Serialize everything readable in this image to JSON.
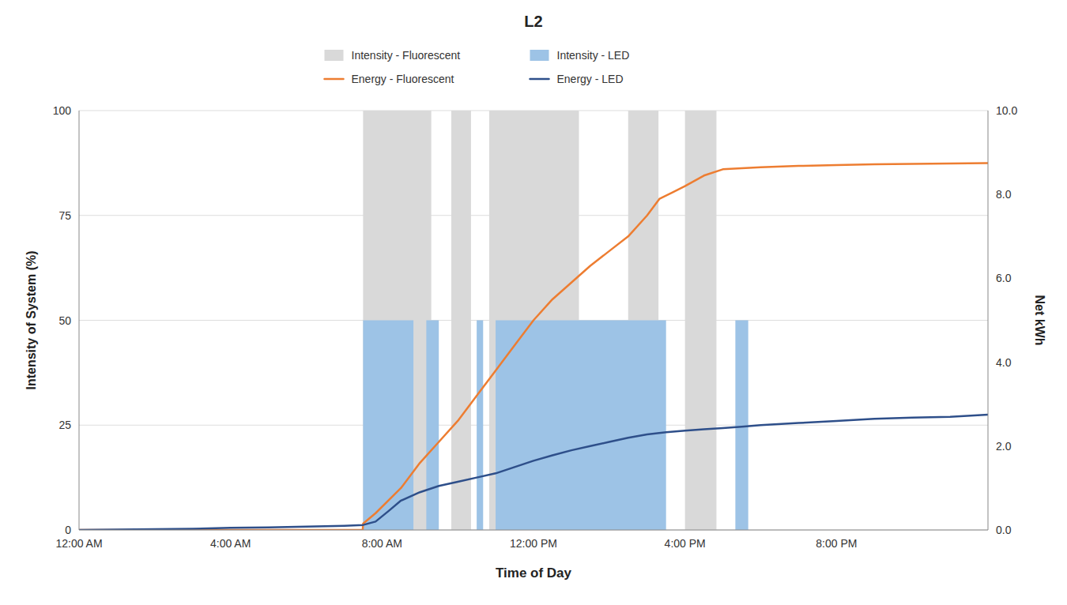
{
  "chart_data": {
    "type": "bar",
    "title": "L2",
    "xlabel": "Time of Day",
    "ylabel": "Intensity of System (%)",
    "y2label": "Net kWh",
    "xlim": [
      0,
      24
    ],
    "xticks": [
      {
        "value": 0,
        "label": "12:00 AM"
      },
      {
        "value": 4,
        "label": "4:00 AM"
      },
      {
        "value": 8,
        "label": "8:00 AM"
      },
      {
        "value": 12,
        "label": "12:00 PM"
      },
      {
        "value": 16,
        "label": "4:00 PM"
      },
      {
        "value": 20,
        "label": "8:00 PM"
      }
    ],
    "ylim": [
      0,
      100
    ],
    "yticks": [
      0,
      25,
      50,
      75,
      100
    ],
    "y2lim": [
      0,
      10
    ],
    "y2ticks": [
      {
        "value": 0.0,
        "label": "0.0"
      },
      {
        "value": 2.0,
        "label": "2.0"
      },
      {
        "value": 4.0,
        "label": "4.0"
      },
      {
        "value": 6.0,
        "label": "6.0"
      },
      {
        "value": 8.0,
        "label": "8.0"
      },
      {
        "value": 10.0,
        "label": "10.0"
      }
    ],
    "grid": "y",
    "legend": "top",
    "series": [
      {
        "name": "Intensity - Fluorescent",
        "type": "bar",
        "color": "#d9d9d9",
        "start": [
          7.5,
          9.83,
          10.83,
          14.5,
          16.0
        ],
        "end": [
          9.3,
          10.35,
          13.2,
          15.3,
          16.83
        ],
        "values": [
          100,
          100,
          100,
          100,
          100
        ]
      },
      {
        "name": "Intensity - LED",
        "type": "bar",
        "color": "#9dc3e6",
        "start": [
          7.5,
          9.17,
          10.5,
          11.0,
          17.33
        ],
        "end": [
          8.83,
          9.5,
          10.67,
          15.5,
          17.67
        ],
        "values": [
          50,
          50,
          50,
          50,
          50
        ]
      },
      {
        "name": "Energy - Fluorescent",
        "type": "line",
        "axis": "y2",
        "color": "#ed7d31",
        "x": [
          0,
          7.49,
          7.5,
          7.83,
          8.5,
          9.0,
          9.5,
          10.0,
          10.5,
          11.0,
          11.5,
          12.0,
          12.5,
          13.0,
          13.5,
          14.0,
          14.5,
          15.0,
          15.33,
          15.67,
          16.0,
          16.5,
          17.0,
          18.0,
          19.0,
          20.0,
          21.0,
          22.0,
          23.0,
          24.0
        ],
        "values": [
          0,
          0,
          0.15,
          0.4,
          1.0,
          1.6,
          2.1,
          2.6,
          3.2,
          3.8,
          4.4,
          5.0,
          5.5,
          5.9,
          6.3,
          6.65,
          7.0,
          7.5,
          7.9,
          8.05,
          8.2,
          8.45,
          8.6,
          8.65,
          8.68,
          8.7,
          8.72,
          8.73,
          8.74,
          8.75
        ]
      },
      {
        "name": "Energy - LED",
        "type": "line",
        "axis": "y2",
        "color": "#2e4f8a",
        "x": [
          0,
          1.0,
          2.0,
          3.0,
          4.0,
          5.0,
          6.0,
          6.5,
          7.0,
          7.5,
          7.83,
          8.17,
          8.5,
          9.0,
          9.5,
          10.0,
          10.5,
          11.0,
          11.5,
          12.0,
          12.5,
          13.0,
          13.5,
          14.0,
          14.5,
          15.0,
          15.5,
          16.0,
          16.5,
          17.0,
          17.5,
          18.0,
          19.0,
          20.0,
          21.0,
          22.0,
          23.0,
          24.0
        ],
        "values": [
          0,
          0.01,
          0.02,
          0.03,
          0.05,
          0.06,
          0.08,
          0.09,
          0.1,
          0.12,
          0.2,
          0.45,
          0.7,
          0.9,
          1.05,
          1.15,
          1.25,
          1.35,
          1.5,
          1.65,
          1.78,
          1.9,
          2.0,
          2.1,
          2.2,
          2.28,
          2.33,
          2.37,
          2.4,
          2.43,
          2.46,
          2.5,
          2.55,
          2.6,
          2.65,
          2.68,
          2.7,
          2.75
        ]
      }
    ]
  }
}
